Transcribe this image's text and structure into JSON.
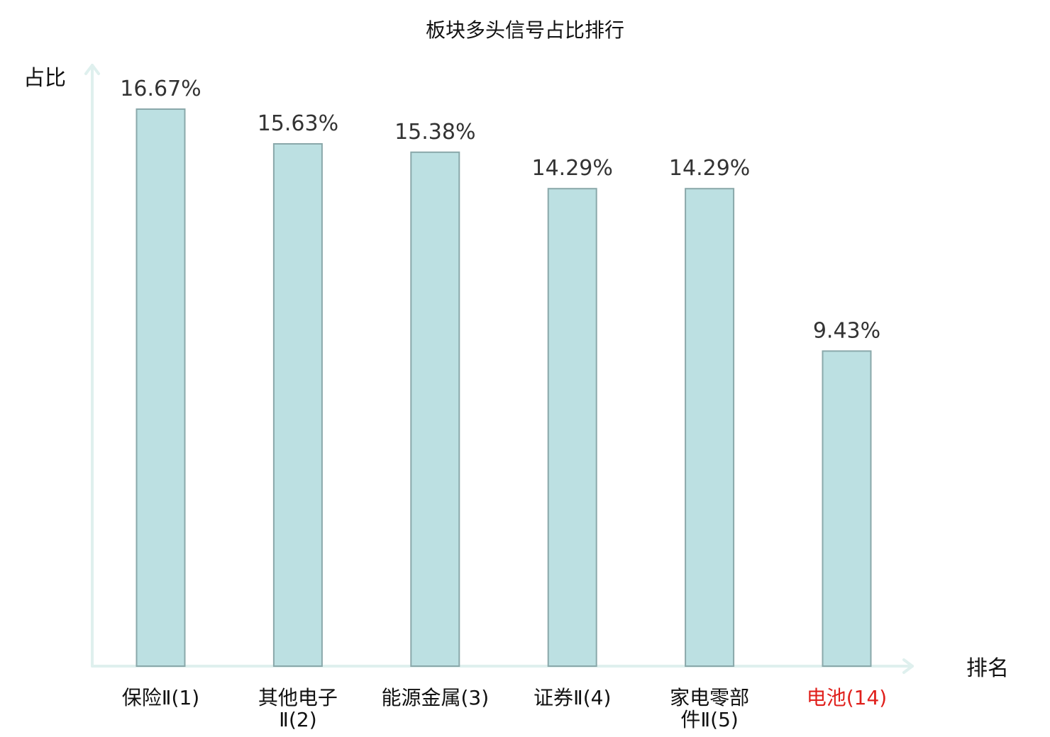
{
  "chart_data": {
    "type": "bar",
    "title": "板块多头信号占比排行",
    "ylabel": "占比",
    "xlabel": "排名",
    "ylim": [
      0,
      17.5
    ],
    "categories": [
      {
        "name": "保险Ⅱ",
        "rank": "(1)",
        "lines": [
          "保险Ⅱ(1)"
        ],
        "highlight": false
      },
      {
        "name": "其他电子Ⅱ",
        "rank": "(2)",
        "lines": [
          "其他电子",
          "Ⅱ(2)"
        ],
        "highlight": false
      },
      {
        "name": "能源金属",
        "rank": "(3)",
        "lines": [
          "能源金属(3)"
        ],
        "highlight": false
      },
      {
        "name": "证券Ⅱ",
        "rank": "(4)",
        "lines": [
          "证券Ⅱ(4)"
        ],
        "highlight": false
      },
      {
        "name": "家电零部件Ⅱ",
        "rank": "(5)",
        "lines": [
          "家电零部",
          "件Ⅱ(5)"
        ],
        "highlight": false
      },
      {
        "name": "电池",
        "rank": "(14)",
        "lines": [
          "电池(14)"
        ],
        "highlight": true
      }
    ],
    "values": [
      16.67,
      15.63,
      15.38,
      14.29,
      14.29,
      9.43
    ],
    "value_labels": [
      "16.67%",
      "15.63%",
      "15.38%",
      "14.29%",
      "14.29%",
      "9.43%"
    ],
    "grid": false
  },
  "colors": {
    "bar_fill": "#bce0e2",
    "bar_stroke": "#8aa8aa",
    "axis": "#dff0ee",
    "label_normal": "#111111",
    "label_highlight": "#e0201c",
    "value_text": "#333333"
  }
}
